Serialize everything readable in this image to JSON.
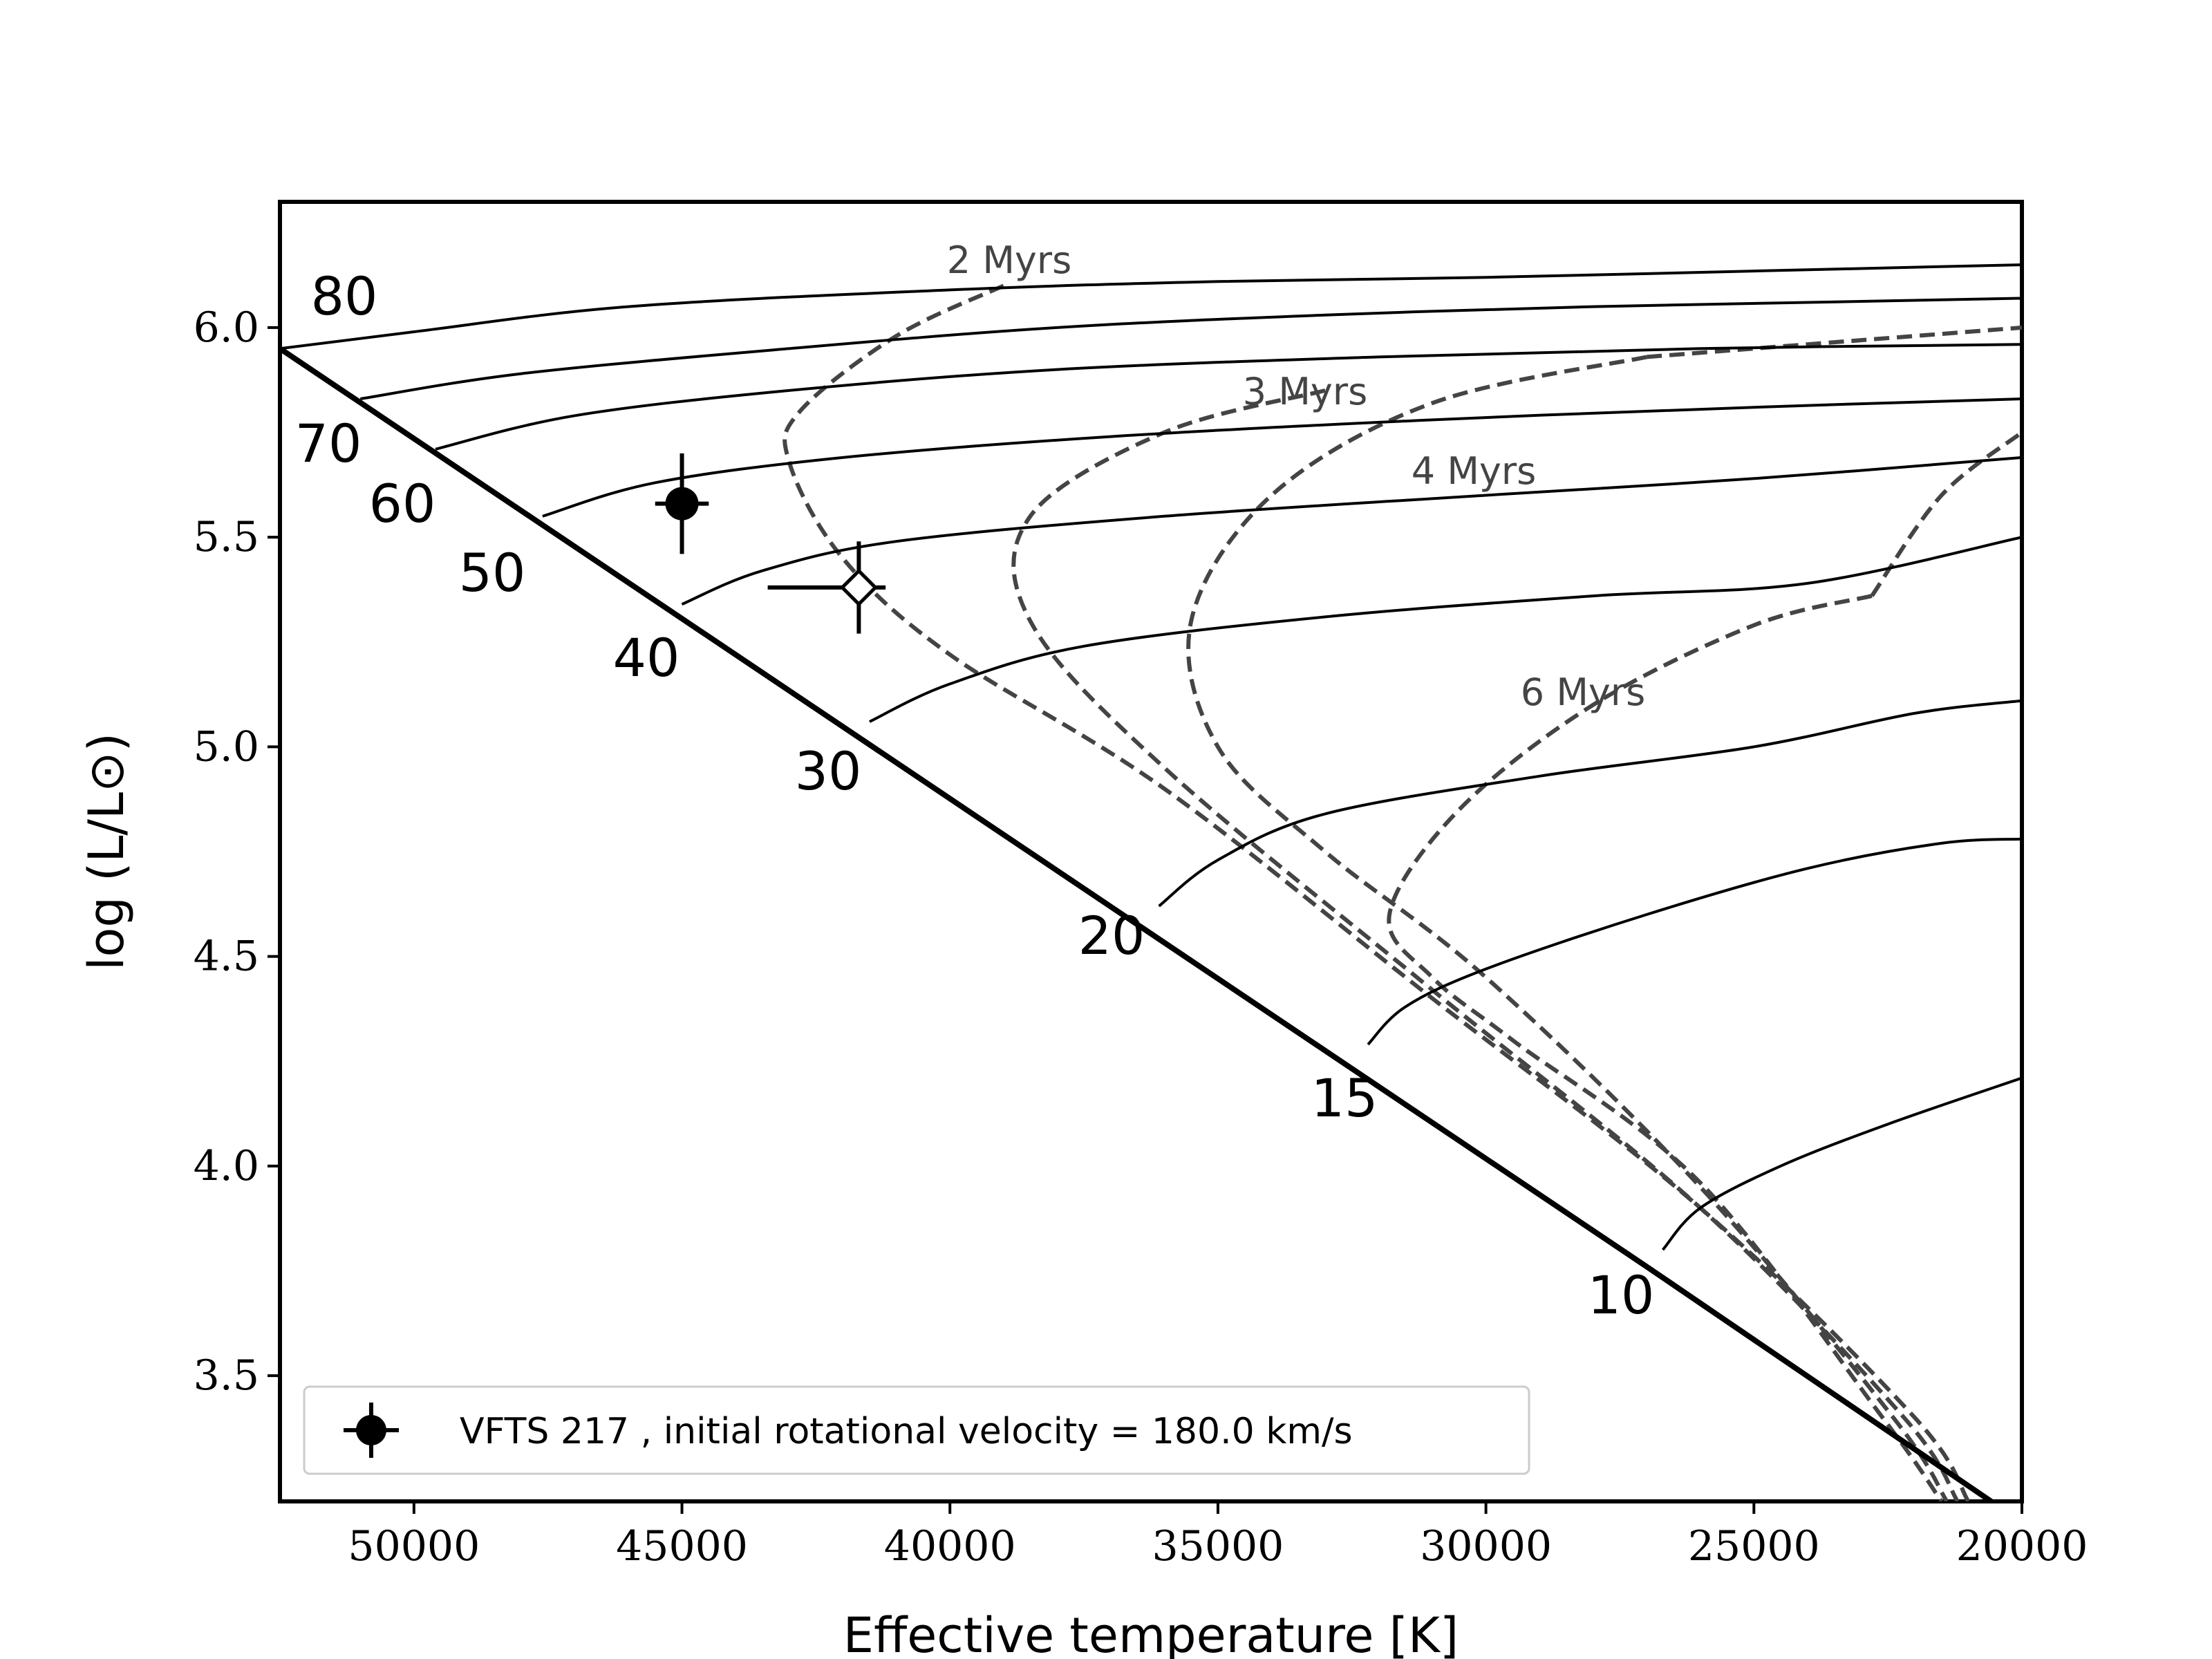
{
  "chart_data": {
    "type": "scatter",
    "title": "",
    "xlabel": "Effective temperature [K]",
    "ylabel": "log (L/L⊙)",
    "xlim": [
      52500,
      20000
    ],
    "ylim": [
      3.2,
      6.3
    ],
    "x_inverted": true,
    "x_ticks": [
      50000,
      45000,
      40000,
      35000,
      30000,
      25000,
      20000
    ],
    "x_tick_labels": [
      "50000",
      "45000",
      "40000",
      "35000",
      "30000",
      "25000",
      "20000"
    ],
    "y_ticks": [
      3.5,
      4.0,
      4.5,
      5.0,
      5.5,
      6.0
    ],
    "y_tick_labels": [
      "3.5",
      "4.0",
      "4.5",
      "5.0",
      "5.5",
      "6.0"
    ],
    "grid": false,
    "legend_position": "lower-left",
    "zams": {
      "points": [
        [
          52500,
          5.95
        ],
        [
          27000,
          3.76
        ],
        [
          20000,
          3.15
        ]
      ]
    },
    "tracks": [
      {
        "mass_label": "80",
        "points": [
          [
            52500,
            5.95
          ],
          [
            50000,
            5.99
          ],
          [
            46000,
            6.05
          ],
          [
            40000,
            6.09
          ],
          [
            35000,
            6.11
          ],
          [
            30000,
            6.12
          ],
          [
            25000,
            6.135
          ],
          [
            20000,
            6.15
          ]
        ]
      },
      {
        "mass_label": "70",
        "points": [
          [
            51000,
            5.83
          ],
          [
            48000,
            5.89
          ],
          [
            43000,
            5.95
          ],
          [
            38000,
            6.0
          ],
          [
            33000,
            6.03
          ],
          [
            28000,
            6.05
          ],
          [
            24000,
            6.06
          ],
          [
            20000,
            6.07
          ]
        ]
      },
      {
        "mass_label": "60",
        "points": [
          [
            49600,
            5.71
          ],
          [
            47000,
            5.79
          ],
          [
            43000,
            5.85
          ],
          [
            38000,
            5.9
          ],
          [
            32000,
            5.93
          ],
          [
            26000,
            5.95
          ],
          [
            20000,
            5.96
          ]
        ]
      },
      {
        "mass_label": "50",
        "points": [
          [
            47600,
            5.55
          ],
          [
            45500,
            5.63
          ],
          [
            42000,
            5.69
          ],
          [
            37000,
            5.74
          ],
          [
            31000,
            5.78
          ],
          [
            25000,
            5.81
          ],
          [
            20000,
            5.83
          ]
        ]
      },
      {
        "mass_label": "40",
        "points": [
          [
            45000,
            5.34
          ],
          [
            43500,
            5.42
          ],
          [
            41000,
            5.49
          ],
          [
            36000,
            5.55
          ],
          [
            30000,
            5.6
          ],
          [
            25000,
            5.64
          ],
          [
            20000,
            5.69
          ]
        ]
      },
      {
        "mass_label": "30",
        "points": [
          [
            41500,
            5.06
          ],
          [
            40000,
            5.15
          ],
          [
            37500,
            5.24
          ],
          [
            33000,
            5.31
          ],
          [
            28000,
            5.36
          ],
          [
            24000,
            5.39
          ],
          [
            20000,
            5.5
          ]
        ]
      },
      {
        "mass_label": "20",
        "points": [
          [
            36100,
            4.62
          ],
          [
            35000,
            4.73
          ],
          [
            33000,
            4.84
          ],
          [
            29000,
            4.93
          ],
          [
            25000,
            5.0
          ],
          [
            22000,
            5.08
          ],
          [
            20000,
            5.11
          ]
        ]
      },
      {
        "mass_label": "15",
        "points": [
          [
            32200,
            4.29
          ],
          [
            31500,
            4.38
          ],
          [
            30000,
            4.47
          ],
          [
            27000,
            4.6
          ],
          [
            24000,
            4.71
          ],
          [
            21500,
            4.77
          ],
          [
            20000,
            4.78
          ]
        ]
      },
      {
        "mass_label": "10",
        "points": [
          [
            26700,
            3.8
          ],
          [
            26000,
            3.9
          ],
          [
            24500,
            4.0
          ],
          [
            22500,
            4.1
          ],
          [
            20000,
            4.21
          ]
        ]
      }
    ],
    "isochrones": [
      {
        "label": "2 Myrs",
        "points": [
          [
            39000,
            6.1
          ],
          [
            41000,
            5.98
          ],
          [
            42800,
            5.8
          ],
          [
            43000,
            5.68
          ],
          [
            42000,
            5.45
          ],
          [
            40000,
            5.22
          ],
          [
            36000,
            4.9
          ],
          [
            31000,
            4.4
          ],
          [
            26000,
            3.9
          ],
          [
            22000,
            3.4
          ],
          [
            21000,
            3.2
          ]
        ]
      },
      {
        "label": "3 Myrs",
        "points": [
          [
            33000,
            5.85
          ],
          [
            36000,
            5.75
          ],
          [
            38500,
            5.55
          ],
          [
            38500,
            5.3
          ],
          [
            36000,
            4.95
          ],
          [
            31000,
            4.42
          ],
          [
            26000,
            3.9
          ],
          [
            22200,
            3.4
          ],
          [
            21200,
            3.2
          ]
        ]
      },
      {
        "label": "4 Myrs",
        "points": [
          [
            27000,
            5.93
          ],
          [
            31000,
            5.82
          ],
          [
            34000,
            5.6
          ],
          [
            35500,
            5.3
          ],
          [
            35000,
            5.0
          ],
          [
            33000,
            4.75
          ],
          [
            30000,
            4.45
          ],
          [
            26000,
            3.95
          ],
          [
            22400,
            3.4
          ],
          [
            21400,
            3.2
          ]
        ]
      },
      {
        "label": "6 Myrs",
        "points": [
          [
            22800,
            5.36
          ],
          [
            25000,
            5.29
          ],
          [
            28000,
            5.1
          ],
          [
            30500,
            4.85
          ],
          [
            31800,
            4.6
          ],
          [
            31000,
            4.45
          ],
          [
            29500,
            4.3
          ],
          [
            26000,
            3.96
          ],
          [
            22600,
            3.4
          ],
          [
            21500,
            3.2
          ]
        ]
      }
    ],
    "iso_extra": [
      {
        "points": [
          [
            27000,
            5.93
          ],
          [
            23000,
            5.97
          ],
          [
            20000,
            6.0
          ]
        ]
      },
      {
        "points": [
          [
            22800,
            5.36
          ],
          [
            21500,
            5.6
          ],
          [
            20000,
            5.75
          ]
        ]
      }
    ],
    "observations": [
      {
        "name": "VFTS 217",
        "x": 45000,
        "y": 5.58,
        "xerr": 500,
        "yerr": 0.12,
        "marker": "filled-circle"
      },
      {
        "x": 41700,
        "y": 5.38,
        "xerr_low": 1700,
        "xerr_high": 500,
        "yerr": 0.11,
        "marker": "open-diamond"
      }
    ],
    "legend_entries": [
      "VFTS 217 , initial rotational velocity = 180.0 km/s"
    ]
  }
}
